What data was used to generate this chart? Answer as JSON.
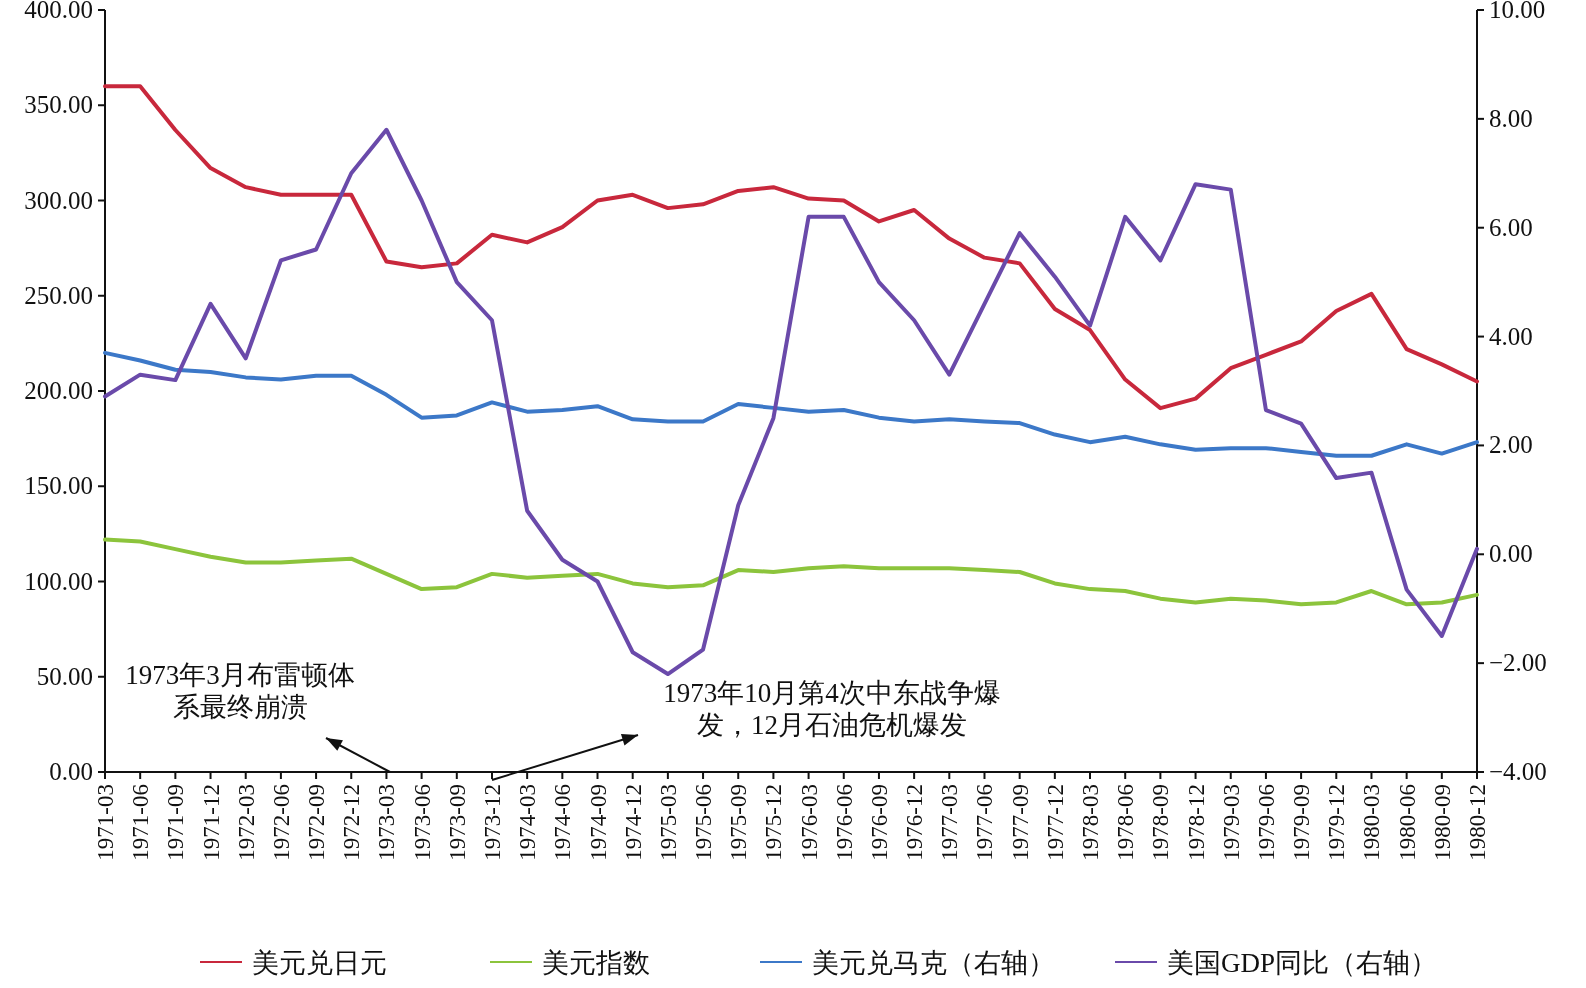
{
  "chart_data": {
    "type": "line",
    "categories": [
      "1971-03",
      "1971-06",
      "1971-09",
      "1971-12",
      "1972-03",
      "1972-06",
      "1972-09",
      "1972-12",
      "1973-03",
      "1973-06",
      "1973-09",
      "1973-12",
      "1974-03",
      "1974-06",
      "1974-09",
      "1974-12",
      "1975-03",
      "1975-06",
      "1975-09",
      "1975-12",
      "1976-03",
      "1976-06",
      "1976-09",
      "1976-12",
      "1977-03",
      "1977-06",
      "1977-09",
      "1977-12",
      "1978-03",
      "1978-06",
      "1978-09",
      "1978-12",
      "1979-03",
      "1979-06",
      "1979-09",
      "1979-12",
      "1980-03",
      "1980-06",
      "1980-09",
      "1980-12"
    ],
    "series": [
      {
        "name": "美元兑日元",
        "color": "#c8283c",
        "values": [
          360,
          360,
          337,
          317,
          307,
          303,
          303,
          303,
          268,
          265,
          267,
          282,
          278,
          286,
          300,
          303,
          296,
          298,
          305,
          307,
          301,
          300,
          289,
          295,
          280,
          270,
          267,
          243,
          232,
          206,
          191,
          196,
          212,
          219,
          226,
          242,
          251,
          222,
          214,
          205
        ]
      },
      {
        "name": "美元指数",
        "color": "#8cc43c",
        "values": [
          122,
          121,
          117,
          113,
          110,
          110,
          111,
          112,
          104,
          96,
          97,
          104,
          102,
          103,
          104,
          99,
          97,
          98,
          106,
          105,
          107,
          108,
          107,
          107,
          107,
          106,
          105,
          99,
          96,
          95,
          91,
          89,
          91,
          90,
          88,
          89,
          95,
          88,
          89,
          93
        ]
      },
      {
        "name": "美元兑马克（右轴）",
        "color": "#3c78c8",
        "axis": "y2",
        "values": [
          3.7,
          3.56,
          3.39,
          3.35,
          3.25,
          3.21,
          3.28,
          3.28,
          2.93,
          2.51,
          2.55,
          2.79,
          2.62,
          2.65,
          2.72,
          2.48,
          2.44,
          2.44,
          2.76,
          2.69,
          2.62,
          2.65,
          2.51,
          2.44,
          2.48,
          2.44,
          2.41,
          2.2,
          2.06,
          2.16,
          2.02,
          1.92,
          1.95,
          1.95,
          1.88,
          1.81,
          1.81,
          2.02,
          1.85,
          2.06
        ]
      },
      {
        "name": "美国GDP同比（右轴）",
        "color": "#6a4aaa",
        "axis": "y2",
        "values": [
          2.9,
          3.3,
          3.2,
          4.6,
          3.6,
          5.4,
          5.6,
          7.0,
          7.8,
          6.5,
          5.0,
          4.3,
          0.8,
          -0.1,
          -0.5,
          -1.8,
          -2.2,
          -1.75,
          0.9,
          2.5,
          6.2,
          6.2,
          5.0,
          4.3,
          3.3,
          4.6,
          5.9,
          5.1,
          4.2,
          6.2,
          5.4,
          6.8,
          6.7,
          2.65,
          2.4,
          1.4,
          1.5,
          -0.65,
          -1.5,
          0.1
        ]
      }
    ],
    "ylim": [
      0,
      400
    ],
    "yticks": [
      {
        "value": 0,
        "label": "0.00"
      },
      {
        "value": 50,
        "label": "50.00"
      },
      {
        "value": 100,
        "label": "100.00"
      },
      {
        "value": 150,
        "label": "150.00"
      },
      {
        "value": 200,
        "label": "200.00"
      },
      {
        "value": 250,
        "label": "250.00"
      },
      {
        "value": 300,
        "label": "300.00"
      },
      {
        "value": 350,
        "label": "350.00"
      },
      {
        "value": 400,
        "label": "400.00"
      }
    ],
    "y2lim": [
      -4,
      10
    ],
    "y2ticks": [
      {
        "value": -4,
        "label": "−4.00"
      },
      {
        "value": -2,
        "label": "−2.00"
      },
      {
        "value": 0,
        "label": "0.00"
      },
      {
        "value": 2,
        "label": "2.00"
      },
      {
        "value": 4,
        "label": "4.00"
      },
      {
        "value": 6,
        "label": "6.00"
      },
      {
        "value": 8,
        "label": "8.00"
      },
      {
        "value": 10,
        "label": "10.00"
      }
    ],
    "annotations": [
      "1973年3月布雷顿体系最终崩溃",
      "1973年10月第4次中东战争爆发，12月石油危机爆发"
    ],
    "legend": "bottom",
    "grid": false,
    "marker": "none",
    "line_style": "solid"
  }
}
